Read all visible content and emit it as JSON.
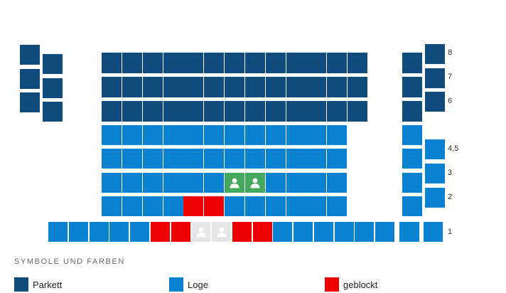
{
  "colors": {
    "parkett": "#0f4c7d",
    "loge": "#0a82d2",
    "blocked": "#ee0000",
    "selected": "#44a95e",
    "taken": "#e6e6e6"
  },
  "rows": [
    {
      "label": "8",
      "status": "parkett"
    },
    {
      "label": "7",
      "status": "parkett"
    },
    {
      "label": "6",
      "status": "parkett"
    },
    {
      "label": "4,5",
      "status": "loge"
    },
    {
      "label": "3",
      "status": "loge"
    },
    {
      "label": "2",
      "status": "loge"
    },
    {
      "label": "1",
      "status": "loge"
    }
  ],
  "seat_status": {
    "row_3": {
      "selected_center_seats": [
        6,
        7
      ]
    },
    "row_2": {
      "blocked_center_seats": [
        4,
        5
      ]
    },
    "row_1": {
      "blocked_seats": [
        5,
        6,
        9,
        10
      ],
      "taken_seats": [
        7,
        8
      ]
    }
  },
  "icons": {
    "selected_seat": "person-icon",
    "taken_seat": "person-icon"
  },
  "legend": {
    "title": "SYMBOLE UND FARBEN",
    "items": [
      {
        "label": "Parkett",
        "color_key": "parkett"
      },
      {
        "label": "Loge",
        "color_key": "loge"
      },
      {
        "label": "geblockt",
        "color_key": "blocked"
      }
    ]
  }
}
